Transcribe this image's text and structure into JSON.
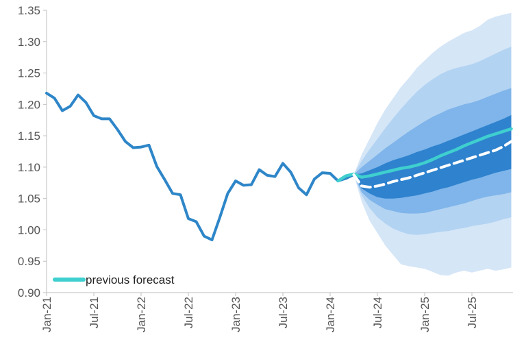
{
  "chart_data": {
    "type": "line",
    "title": "",
    "xlabel": "",
    "ylabel": "",
    "ylim": [
      0.9,
      1.35
    ],
    "yticks": [
      "1.35",
      "1.30",
      "1.25",
      "1.20",
      "1.15",
      "1.10",
      "1.05",
      "1.00",
      "0.95",
      "0.90"
    ],
    "xlim": [
      "2021-01",
      "2025-12"
    ],
    "xticks": [
      "Jan-21",
      "Jul-21",
      "Jan-22",
      "Jul-22",
      "Jan-23",
      "Jul-23",
      "Jan-24",
      "Jul-24",
      "Jan-25",
      "Jul-25"
    ],
    "grid": false,
    "legend": {
      "placement": "bottom-left",
      "entries": [
        "previous forecast"
      ]
    },
    "colors": {
      "actual": "#2e86c8",
      "previous_forecast": "#3fcfcf",
      "central_forecast": "#ffffff",
      "band_outer": "#d5e6f7",
      "band_third": "#b3d3f2",
      "band_second": "#7fb5ea",
      "band_inner": "#2e82ce",
      "axis": "#bfbfbf"
    },
    "series": [
      {
        "key": "actual",
        "x": [
          "2021-01",
          "2021-02",
          "2021-03",
          "2021-04",
          "2021-05",
          "2021-06",
          "2021-07",
          "2021-08",
          "2021-09",
          "2021-10",
          "2021-11",
          "2021-12",
          "2022-01",
          "2022-02",
          "2022-03",
          "2022-04",
          "2022-05",
          "2022-06",
          "2022-07",
          "2022-08",
          "2022-09",
          "2022-10",
          "2022-11",
          "2022-12",
          "2023-01",
          "2023-02",
          "2023-03",
          "2023-04",
          "2023-05",
          "2023-06",
          "2023-07",
          "2023-08",
          "2023-09",
          "2023-10",
          "2023-11",
          "2023-12",
          "2024-01",
          "2024-02",
          "2024-03",
          "2024-04"
        ],
        "y": [
          1.218,
          1.21,
          1.19,
          1.197,
          1.215,
          1.203,
          1.182,
          1.177,
          1.177,
          1.16,
          1.141,
          1.131,
          1.132,
          1.135,
          1.101,
          1.08,
          1.058,
          1.056,
          1.018,
          1.013,
          0.99,
          0.984,
          1.02,
          1.058,
          1.078,
          1.071,
          1.072,
          1.096,
          1.087,
          1.085,
          1.106,
          1.092,
          1.067,
          1.056,
          1.081,
          1.091,
          1.09,
          1.078,
          1.082,
          1.088
        ]
      },
      {
        "key": "previous_forecast",
        "name": "previous forecast",
        "x": [
          "2024-02",
          "2024-03",
          "2024-04",
          "2024-05",
          "2024-06",
          "2024-07",
          "2024-08",
          "2024-09",
          "2024-10",
          "2024-11",
          "2024-12",
          "2025-01",
          "2025-02",
          "2025-03",
          "2025-04",
          "2025-05",
          "2025-06",
          "2025-07",
          "2025-08",
          "2025-09",
          "2025-10",
          "2025-11",
          "2025-12"
        ],
        "y": [
          1.078,
          1.086,
          1.089,
          1.084,
          1.086,
          1.089,
          1.092,
          1.095,
          1.098,
          1.1,
          1.103,
          1.107,
          1.112,
          1.118,
          1.123,
          1.128,
          1.134,
          1.139,
          1.144,
          1.149,
          1.153,
          1.157,
          1.161
        ]
      },
      {
        "key": "central_forecast",
        "x": [
          "2024-04",
          "2024-05",
          "2024-06",
          "2024-07",
          "2024-08",
          "2024-09",
          "2024-10",
          "2024-11",
          "2024-12",
          "2025-01",
          "2025-02",
          "2025-03",
          "2025-04",
          "2025-05",
          "2025-06",
          "2025-07",
          "2025-08",
          "2025-09",
          "2025-10",
          "2025-11",
          "2025-12"
        ],
        "y": [
          1.088,
          1.07,
          1.068,
          1.07,
          1.073,
          1.077,
          1.08,
          1.083,
          1.087,
          1.091,
          1.095,
          1.099,
          1.103,
          1.107,
          1.111,
          1.115,
          1.119,
          1.123,
          1.127,
          1.133,
          1.141
        ]
      }
    ],
    "bands": [
      {
        "key": "outer",
        "x": [
          "2024-04",
          "2024-05",
          "2024-06",
          "2024-07",
          "2024-08",
          "2024-09",
          "2024-10",
          "2024-11",
          "2024-12",
          "2025-01",
          "2025-02",
          "2025-03",
          "2025-04",
          "2025-05",
          "2025-06",
          "2025-07",
          "2025-08",
          "2025-09",
          "2025-10",
          "2025-11",
          "2025-12"
        ],
        "low": [
          1.088,
          1.045,
          1.015,
          0.995,
          0.975,
          0.96,
          0.945,
          0.942,
          0.94,
          0.938,
          0.933,
          0.928,
          0.927,
          0.932,
          0.935,
          0.932,
          0.935,
          0.938,
          0.935,
          0.937,
          0.94
        ],
        "high": [
          1.088,
          1.12,
          1.145,
          1.17,
          1.192,
          1.21,
          1.228,
          1.242,
          1.258,
          1.27,
          1.282,
          1.292,
          1.3,
          1.307,
          1.314,
          1.318,
          1.325,
          1.335,
          1.34,
          1.343,
          1.346
        ]
      },
      {
        "key": "third",
        "x": [
          "2024-04",
          "2024-05",
          "2024-06",
          "2024-07",
          "2024-08",
          "2024-09",
          "2024-10",
          "2024-11",
          "2024-12",
          "2025-01",
          "2025-02",
          "2025-03",
          "2025-04",
          "2025-05",
          "2025-06",
          "2025-07",
          "2025-08",
          "2025-09",
          "2025-10",
          "2025-11",
          "2025-12"
        ],
        "low": [
          1.088,
          1.055,
          1.035,
          1.02,
          1.01,
          1.002,
          0.997,
          0.993,
          0.992,
          0.993,
          0.995,
          0.997,
          0.998,
          1.001,
          1.003,
          1.006,
          1.008,
          1.01,
          1.013,
          1.017,
          1.02
        ],
        "high": [
          1.088,
          1.11,
          1.128,
          1.145,
          1.162,
          1.178,
          1.193,
          1.207,
          1.22,
          1.231,
          1.24,
          1.248,
          1.254,
          1.258,
          1.261,
          1.264,
          1.269,
          1.275,
          1.281,
          1.287,
          1.292
        ]
      },
      {
        "key": "second",
        "x": [
          "2024-04",
          "2024-05",
          "2024-06",
          "2024-07",
          "2024-08",
          "2024-09",
          "2024-10",
          "2024-11",
          "2024-12",
          "2025-01",
          "2025-02",
          "2025-03",
          "2025-04",
          "2025-05",
          "2025-06",
          "2025-07",
          "2025-08",
          "2025-09",
          "2025-10",
          "2025-11",
          "2025-12"
        ],
        "low": [
          1.088,
          1.06,
          1.048,
          1.04,
          1.033,
          1.03,
          1.027,
          1.026,
          1.026,
          1.027,
          1.03,
          1.033,
          1.036,
          1.039,
          1.042,
          1.046,
          1.05,
          1.053,
          1.055,
          1.057,
          1.06
        ],
        "high": [
          1.088,
          1.1,
          1.11,
          1.12,
          1.13,
          1.139,
          1.148,
          1.157,
          1.165,
          1.173,
          1.18,
          1.186,
          1.192,
          1.196,
          1.2,
          1.203,
          1.207,
          1.212,
          1.217,
          1.222,
          1.226
        ]
      },
      {
        "key": "inner",
        "x": [
          "2024-04",
          "2024-05",
          "2024-06",
          "2024-07",
          "2024-08",
          "2024-09",
          "2024-10",
          "2024-11",
          "2024-12",
          "2025-01",
          "2025-02",
          "2025-03",
          "2025-04",
          "2025-05",
          "2025-06",
          "2025-07",
          "2025-08",
          "2025-09",
          "2025-10",
          "2025-11",
          "2025-12"
        ],
        "low": [
          1.088,
          1.066,
          1.058,
          1.052,
          1.05,
          1.05,
          1.051,
          1.053,
          1.055,
          1.058,
          1.061,
          1.065,
          1.068,
          1.072,
          1.076,
          1.08,
          1.083,
          1.087,
          1.091,
          1.094,
          1.097
        ],
        "high": [
          1.088,
          1.09,
          1.095,
          1.1,
          1.106,
          1.111,
          1.115,
          1.119,
          1.124,
          1.128,
          1.133,
          1.137,
          1.142,
          1.147,
          1.152,
          1.157,
          1.162,
          1.167,
          1.172,
          1.177,
          1.183
        ]
      }
    ]
  }
}
